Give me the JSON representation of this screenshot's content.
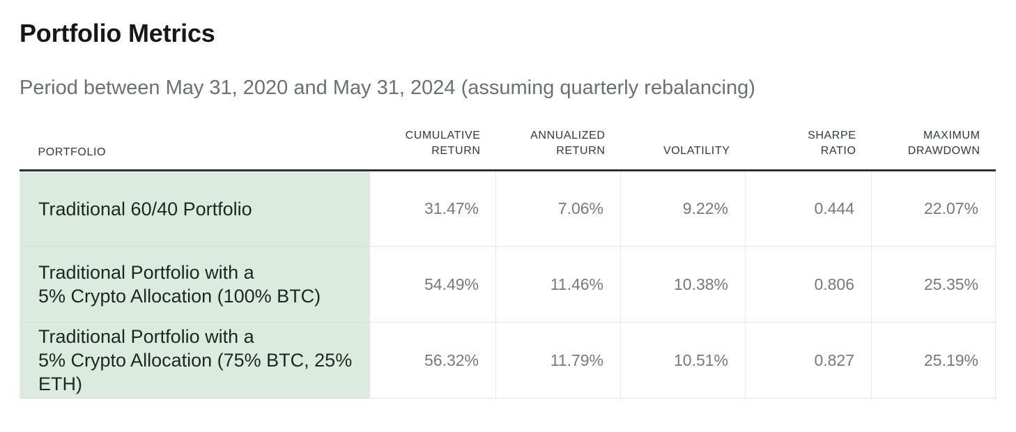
{
  "page": {
    "title": "Portfolio Metrics",
    "subtitle": "Period between May 31, 2020 and May 31, 2024 (assuming quarterly rebalancing)"
  },
  "table": {
    "headers": [
      "PORTFOLIO",
      "CUMULATIVE\nRETURN",
      "ANNUALIZED\nRETURN",
      "VOLATILITY",
      "SHARPE\nRATIO",
      "MAXIMUM\nDRAWDOWN"
    ],
    "rows": [
      {
        "portfolio": "Traditional 60/40 Portfolio",
        "values": [
          "31.47%",
          "7.06%",
          "9.22%",
          "0.444",
          "22.07%"
        ]
      },
      {
        "portfolio": "Traditional Portfolio with a\n5% Crypto Allocation (100% BTC)",
        "values": [
          "54.49%",
          "11.46%",
          "10.38%",
          "0.806",
          "25.35%"
        ]
      },
      {
        "portfolio": "Traditional Portfolio with a\n5% Crypto Allocation (75% BTC, 25% ETH)",
        "values": [
          "56.32%",
          "11.79%",
          "10.51%",
          "0.827",
          "25.19%"
        ]
      }
    ]
  },
  "colors": {
    "row_label_background": "#dcebe0",
    "header_rule": "#2b3137",
    "value_text": "#76797d",
    "subtitle_text": "#6a7076",
    "cell_border": "#e6e8e8"
  },
  "chart_data": {
    "type": "table",
    "title": "Portfolio Metrics",
    "subtitle": "Period between May 31, 2020 and May 31, 2024 (assuming quarterly rebalancing)",
    "columns": [
      "Portfolio",
      "Cumulative Return",
      "Annualized Return",
      "Volatility",
      "Sharpe Ratio",
      "Maximum Drawdown"
    ],
    "rows": [
      [
        "Traditional 60/40 Portfolio",
        "31.47%",
        "7.06%",
        "9.22%",
        "0.444",
        "22.07%"
      ],
      [
        "Traditional Portfolio with a 5% Crypto Allocation (100% BTC)",
        "54.49%",
        "11.46%",
        "10.38%",
        "0.806",
        "25.35%"
      ],
      [
        "Traditional Portfolio with a 5% Crypto Allocation (75% BTC, 25% ETH)",
        "56.32%",
        "11.79%",
        "10.51%",
        "0.827",
        "25.19%"
      ]
    ],
    "numeric": {
      "cumulative_return_pct": [
        31.47,
        54.49,
        56.32
      ],
      "annualized_return_pct": [
        7.06,
        11.46,
        11.79
      ],
      "volatility_pct": [
        9.22,
        10.38,
        10.51
      ],
      "sharpe_ratio": [
        0.444,
        0.806,
        0.827
      ],
      "maximum_drawdown_pct": [
        22.07,
        25.35,
        25.19
      ]
    }
  }
}
